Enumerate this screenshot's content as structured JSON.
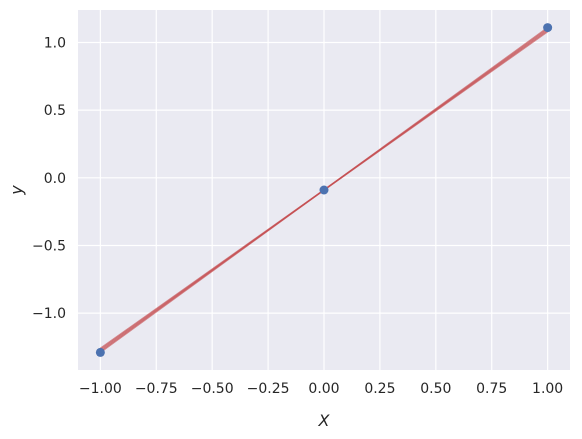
{
  "chart_data": {
    "type": "scatter",
    "xlabel": "X",
    "ylabel": "y",
    "xlim": [
      -1.1,
      1.1
    ],
    "ylim": [
      -1.42,
      1.24
    ],
    "xticks": [
      -1.0,
      -0.75,
      -0.5,
      -0.25,
      0.0,
      0.25,
      0.5,
      0.75,
      1.0
    ],
    "xtick_labels": [
      "−1.00",
      "−0.75",
      "−0.50",
      "−0.25",
      "0.00",
      "0.25",
      "0.50",
      "0.75",
      "1.00"
    ],
    "yticks": [
      -1.0,
      -0.5,
      0.0,
      0.5,
      1.0
    ],
    "ytick_labels": [
      "−1.0",
      "−0.5",
      "0.0",
      "0.5",
      "1.0"
    ],
    "grid": true,
    "background_color": "#eaeaf2",
    "grid_color": "#ffffff",
    "points": {
      "color": "#4c72b0",
      "x": [
        -1.0,
        0.0,
        1.0
      ],
      "y": [
        -1.29,
        -0.09,
        1.11
      ]
    },
    "fit_lines": {
      "color": "#c44e52",
      "opacity": 0.65,
      "lines": [
        {
          "x": [
            -1.0,
            1.0
          ],
          "y": [
            -1.29,
            1.11
          ]
        },
        {
          "x": [
            -1.0,
            1.0
          ],
          "y": [
            -1.27,
            1.09
          ]
        },
        {
          "x": [
            -1.0,
            1.0
          ],
          "y": [
            -1.28,
            1.1
          ]
        },
        {
          "x": [
            -1.0,
            1.0
          ],
          "y": [
            -1.26,
            1.08
          ]
        }
      ]
    }
  }
}
